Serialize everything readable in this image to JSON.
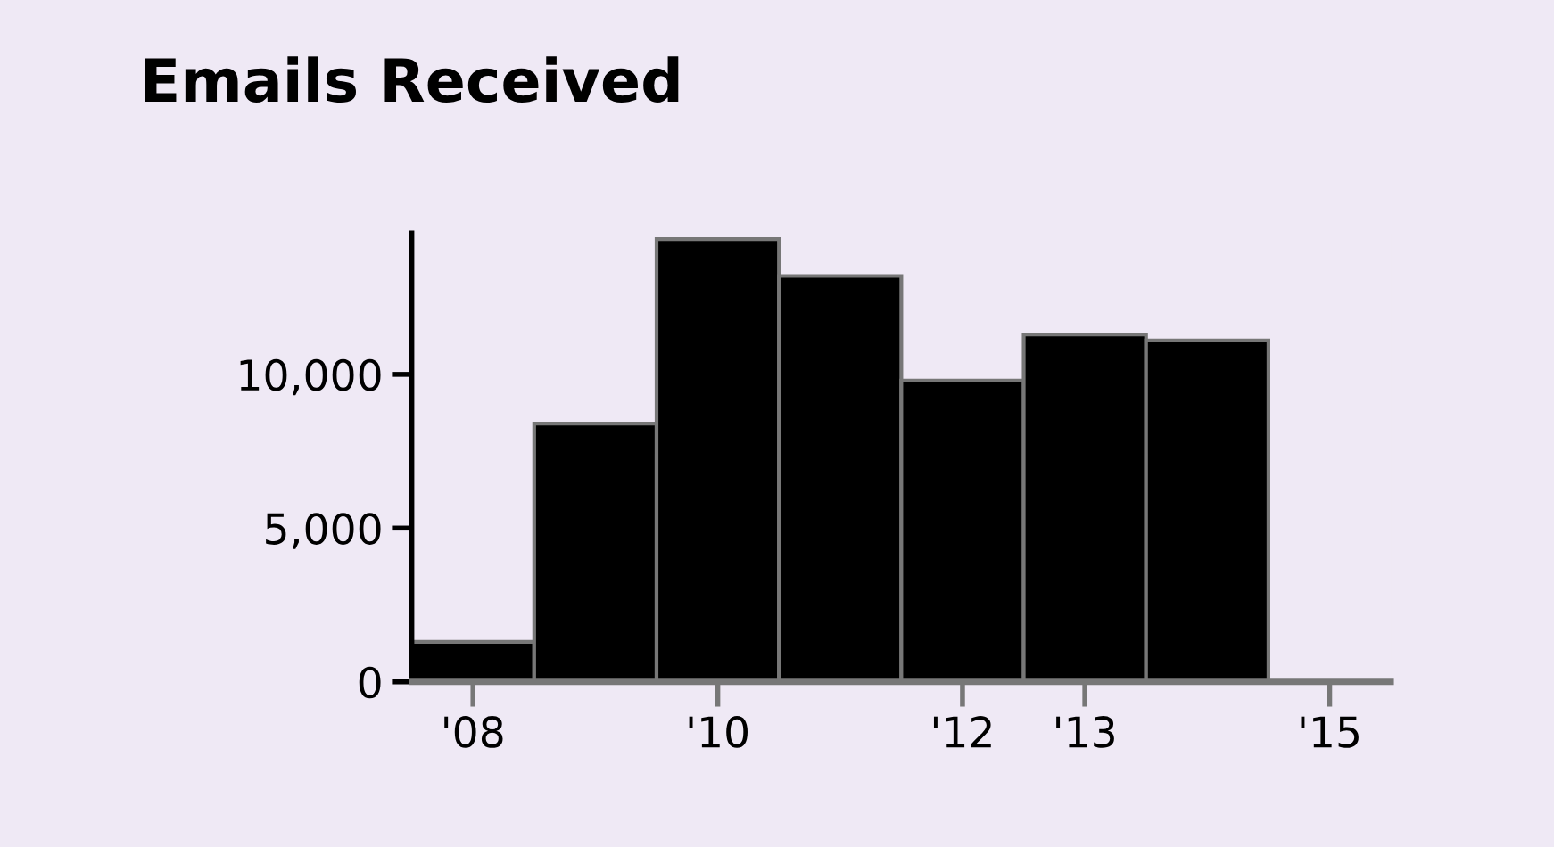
{
  "chart_data": {
    "type": "histogram",
    "title": "Emails Received",
    "bins": [
      2007.5,
      2008.5,
      2009.5,
      2010.5,
      2011.5,
      2012.5,
      2013.5,
      2014.5
    ],
    "values": [
      1300,
      8400,
      14400,
      13200,
      9800,
      11300,
      11100
    ],
    "color": "#000000",
    "xlim": [
      2007.5,
      2015.5
    ],
    "xticks": [
      {
        "value": 2008,
        "label": "'08"
      },
      {
        "value": 2010,
        "label": "'10"
      },
      {
        "value": 2012,
        "label": "'12"
      },
      {
        "value": 2013,
        "label": "'13"
      },
      {
        "value": 2015,
        "label": "'15"
      }
    ],
    "ylim": [
      0,
      14600
    ],
    "yticks": [
      {
        "value": 0,
        "label": "0"
      },
      {
        "value": 5000,
        "label": "5,000"
      },
      {
        "value": 10000,
        "label": "10,000"
      }
    ],
    "grid": false
  }
}
